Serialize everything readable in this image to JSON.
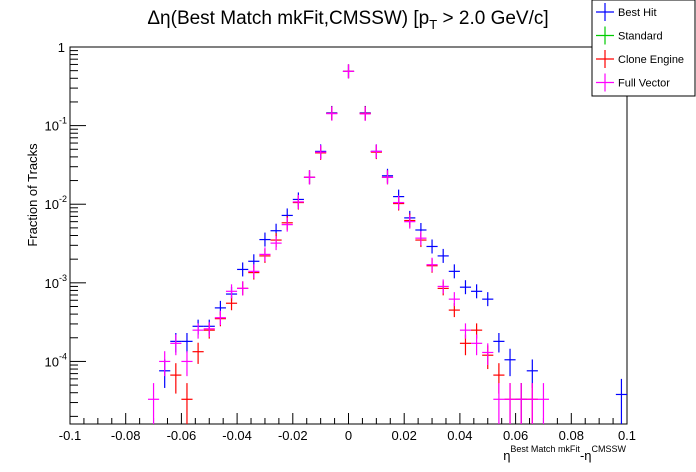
{
  "chart_data": {
    "type": "scatter",
    "title_prefix": "Δη(Best Match mkFit,CMSSW) [p",
    "title_sub": "T",
    "title_suffix": " > 2.0 GeV/c]",
    "xlabel_base1": "η",
    "xlabel_sup1": "Best Match mkFit",
    "xlabel_mid": "-η",
    "xlabel_sup2": "CMSSW",
    "ylabel": "Fraction of Tracks",
    "xlim": [
      -0.1,
      0.1
    ],
    "ylim": [
      1.6e-05,
      1.0
    ],
    "log_y": true,
    "grid": false,
    "legend_position": "top-right",
    "x_ticks": [
      "-0.1",
      "-0.08",
      "-0.06",
      "-0.04",
      "-0.02",
      "0",
      "0.02",
      "0.04",
      "0.06",
      "0.08",
      "0.1"
    ],
    "x_tick_values": [
      -0.1,
      -0.08,
      -0.06,
      -0.04,
      -0.02,
      0,
      0.02,
      0.04,
      0.06,
      0.08,
      0.1
    ],
    "y_ticks": [
      {
        "value": 0.0001,
        "base": "10",
        "exp": "-4"
      },
      {
        "value": 0.001,
        "base": "10",
        "exp": "-3"
      },
      {
        "value": 0.01,
        "base": "10",
        "exp": "-2"
      },
      {
        "value": 0.1,
        "base": "10",
        "exp": "-1"
      },
      {
        "value": 1,
        "base": "1",
        "exp": ""
      }
    ],
    "bin_half_width": 0.002,
    "series": [
      {
        "name": "Best Hit",
        "color": "#0000ff",
        "points": [
          {
            "x": -0.066,
            "y": 7.6e-05,
            "err": 3e-05
          },
          {
            "x": -0.062,
            "y": 0.00018,
            "err": 5e-05
          },
          {
            "x": -0.058,
            "y": 0.00018,
            "err": 5e-05
          },
          {
            "x": -0.054,
            "y": 0.00028,
            "err": 6e-05
          },
          {
            "x": -0.05,
            "y": 0.00028,
            "err": 6e-05
          },
          {
            "x": -0.046,
            "y": 0.00048,
            "err": 8e-05
          },
          {
            "x": -0.042,
            "y": 0.00072,
            "err": 0.0001
          },
          {
            "x": -0.038,
            "y": 0.00148,
            "err": 0.00014
          },
          {
            "x": -0.034,
            "y": 0.00188,
            "err": 0.00016
          },
          {
            "x": -0.03,
            "y": 0.00355,
            "err": 0.00022
          },
          {
            "x": -0.026,
            "y": 0.0046,
            "err": 0.00025
          },
          {
            "x": -0.022,
            "y": 0.0072,
            "err": 0.0003
          },
          {
            "x": -0.018,
            "y": 0.0115,
            "err": 0.0004
          },
          {
            "x": -0.014,
            "y": 0.022,
            "err": 0.0006
          },
          {
            "x": -0.01,
            "y": 0.047,
            "err": 0.0009
          },
          {
            "x": -0.006,
            "y": 0.145,
            "err": 0.0015
          },
          {
            "x": 0.0,
            "y": 0.49,
            "err": 0.003
          },
          {
            "x": 0.006,
            "y": 0.145,
            "err": 0.0015
          },
          {
            "x": 0.01,
            "y": 0.047,
            "err": 0.0009
          },
          {
            "x": 0.014,
            "y": 0.023,
            "err": 0.0006
          },
          {
            "x": 0.018,
            "y": 0.0125,
            "err": 0.0004
          },
          {
            "x": 0.022,
            "y": 0.0067,
            "err": 0.0003
          },
          {
            "x": 0.026,
            "y": 0.0047,
            "err": 0.00025
          },
          {
            "x": 0.03,
            "y": 0.0029,
            "err": 0.0002
          },
          {
            "x": 0.034,
            "y": 0.0022,
            "err": 0.00018
          },
          {
            "x": 0.038,
            "y": 0.0014,
            "err": 0.00014
          },
          {
            "x": 0.042,
            "y": 0.00088,
            "err": 0.00011
          },
          {
            "x": 0.046,
            "y": 0.00078,
            "err": 0.0001
          },
          {
            "x": 0.05,
            "y": 0.00062,
            "err": 9e-05
          },
          {
            "x": 0.054,
            "y": 0.00018,
            "err": 5e-05
          },
          {
            "x": 0.058,
            "y": 0.000105,
            "err": 4e-05
          },
          {
            "x": 0.062,
            "y": 3.3e-05,
            "err": 2e-05
          },
          {
            "x": 0.066,
            "y": 7.6e-05,
            "err": 3e-05
          },
          {
            "x": 0.098,
            "y": 3.8e-05,
            "err": 2.2e-05
          }
        ]
      },
      {
        "name": "Standard",
        "color": "#00cc00",
        "points": []
      },
      {
        "name": "Clone Engine",
        "color": "#ff0000",
        "points": [
          {
            "x": -0.062,
            "y": 6.7e-05,
            "err": 2.8e-05
          },
          {
            "x": -0.058,
            "y": 3.3e-05,
            "err": 2e-05
          },
          {
            "x": -0.054,
            "y": 0.000133,
            "err": 4e-05
          },
          {
            "x": -0.05,
            "y": 0.00025,
            "err": 5.5e-05
          },
          {
            "x": -0.046,
            "y": 0.00035,
            "err": 7e-05
          },
          {
            "x": -0.042,
            "y": 0.00055,
            "err": 9e-05
          },
          {
            "x": -0.038,
            "y": 0.00085,
            "err": 0.00011
          },
          {
            "x": -0.034,
            "y": 0.00135,
            "err": 0.00014
          },
          {
            "x": -0.03,
            "y": 0.0022,
            "err": 0.00018
          },
          {
            "x": -0.026,
            "y": 0.0035,
            "err": 0.00022
          },
          {
            "x": -0.022,
            "y": 0.0058,
            "err": 0.00028
          },
          {
            "x": -0.018,
            "y": 0.0105,
            "err": 0.0004
          },
          {
            "x": -0.014,
            "y": 0.022,
            "err": 0.0006
          },
          {
            "x": -0.01,
            "y": 0.045,
            "err": 0.0009
          },
          {
            "x": -0.006,
            "y": 0.143,
            "err": 0.0015
          },
          {
            "x": 0.0,
            "y": 0.49,
            "err": 0.003
          },
          {
            "x": 0.006,
            "y": 0.143,
            "err": 0.0015
          },
          {
            "x": 0.01,
            "y": 0.046,
            "err": 0.0009
          },
          {
            "x": 0.014,
            "y": 0.022,
            "err": 0.0006
          },
          {
            "x": 0.018,
            "y": 0.0102,
            "err": 0.0004
          },
          {
            "x": 0.022,
            "y": 0.0062,
            "err": 0.0003
          },
          {
            "x": 0.026,
            "y": 0.0035,
            "err": 0.00022
          },
          {
            "x": 0.03,
            "y": 0.00165,
            "err": 0.00015
          },
          {
            "x": 0.034,
            "y": 0.00085,
            "err": 0.00011
          },
          {
            "x": 0.038,
            "y": 0.00045,
            "err": 8e-05
          },
          {
            "x": 0.042,
            "y": 0.00017,
            "err": 5e-05
          },
          {
            "x": 0.046,
            "y": 0.00025,
            "err": 5.5e-05
          },
          {
            "x": 0.05,
            "y": 0.00012,
            "err": 4e-05
          },
          {
            "x": 0.054,
            "y": 6.7e-05,
            "err": 2.8e-05
          },
          {
            "x": 0.058,
            "y": 3.3e-05,
            "err": 2e-05
          },
          {
            "x": 0.062,
            "y": 3.3e-05,
            "err": 2e-05
          },
          {
            "x": 0.066,
            "y": 3.3e-05,
            "err": 2e-05
          }
        ]
      },
      {
        "name": "Full Vector",
        "color": "#ff00ff",
        "points": [
          {
            "x": -0.07,
            "y": 3.3e-05,
            "err": 2e-05
          },
          {
            "x": -0.066,
            "y": 0.0001,
            "err": 3.5e-05
          },
          {
            "x": -0.062,
            "y": 0.00017,
            "err": 5e-05
          },
          {
            "x": -0.058,
            "y": 0.0001,
            "err": 3.5e-05
          },
          {
            "x": -0.054,
            "y": 0.00025,
            "err": 5.5e-05
          },
          {
            "x": -0.05,
            "y": 0.00026,
            "err": 5.5e-05
          },
          {
            "x": -0.046,
            "y": 0.00036,
            "err": 7e-05
          },
          {
            "x": -0.042,
            "y": 0.00078,
            "err": 0.0001
          },
          {
            "x": -0.038,
            "y": 0.00085,
            "err": 0.00011
          },
          {
            "x": -0.034,
            "y": 0.0014,
            "err": 0.00014
          },
          {
            "x": -0.03,
            "y": 0.0023,
            "err": 0.00018
          },
          {
            "x": -0.026,
            "y": 0.0032,
            "err": 0.0002
          },
          {
            "x": -0.022,
            "y": 0.0055,
            "err": 0.00028
          },
          {
            "x": -0.018,
            "y": 0.0107,
            "err": 0.0004
          },
          {
            "x": -0.014,
            "y": 0.022,
            "err": 0.0006
          },
          {
            "x": -0.01,
            "y": 0.046,
            "err": 0.0009
          },
          {
            "x": -0.006,
            "y": 0.142,
            "err": 0.0015
          },
          {
            "x": 0.0,
            "y": 0.49,
            "err": 0.003
          },
          {
            "x": 0.006,
            "y": 0.141,
            "err": 0.0015
          },
          {
            "x": 0.01,
            "y": 0.047,
            "err": 0.0009
          },
          {
            "x": 0.014,
            "y": 0.022,
            "err": 0.0006
          },
          {
            "x": 0.018,
            "y": 0.0105,
            "err": 0.0004
          },
          {
            "x": 0.022,
            "y": 0.006,
            "err": 0.0003
          },
          {
            "x": 0.026,
            "y": 0.0037,
            "err": 0.00022
          },
          {
            "x": 0.03,
            "y": 0.0017,
            "err": 0.00015
          },
          {
            "x": 0.034,
            "y": 0.0009,
            "err": 0.00011
          },
          {
            "x": 0.038,
            "y": 0.00062,
            "err": 9e-05
          },
          {
            "x": 0.042,
            "y": 0.00025,
            "err": 5.5e-05
          },
          {
            "x": 0.046,
            "y": 0.00017,
            "err": 5e-05
          },
          {
            "x": 0.05,
            "y": 0.00013,
            "err": 4e-05
          },
          {
            "x": 0.054,
            "y": 3.3e-05,
            "err": 2e-05
          },
          {
            "x": 0.058,
            "y": 3.3e-05,
            "err": 2e-05
          },
          {
            "x": 0.062,
            "y": 3.3e-05,
            "err": 2e-05
          },
          {
            "x": 0.066,
            "y": 3.3e-05,
            "err": 2e-05
          },
          {
            "x": 0.07,
            "y": 3.3e-05,
            "err": 2e-05
          }
        ]
      }
    ]
  }
}
